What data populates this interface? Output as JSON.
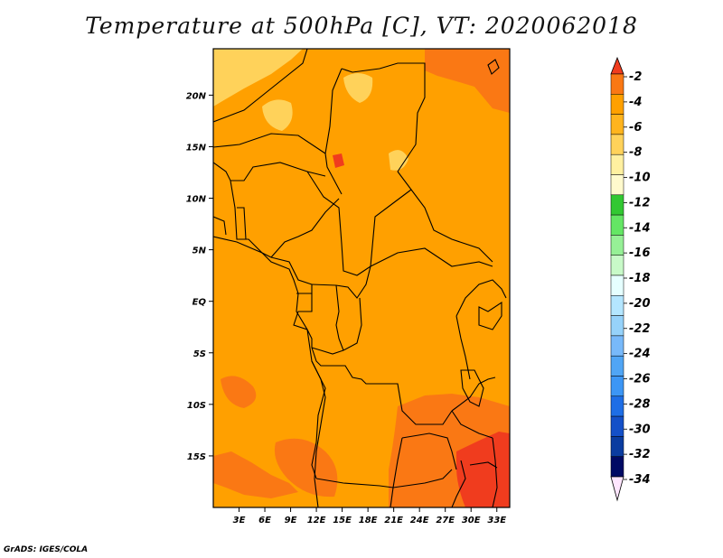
{
  "chart_data": {
    "type": "heatmap",
    "title": "Temperature at 500hPa [C], VT: 2020062018",
    "variable": "Temperature at 500hPa",
    "units": "C",
    "valid_time": "2020062018",
    "x_tick_labels": [
      "3E",
      "6E",
      "9E",
      "12E",
      "15E",
      "18E",
      "21E",
      "24E",
      "27E",
      "30E",
      "33E"
    ],
    "x_tick_values": [
      3,
      6,
      9,
      12,
      15,
      18,
      21,
      24,
      27,
      30,
      33
    ],
    "y_tick_labels": [
      "20N",
      "15N",
      "10N",
      "5N",
      "EQ",
      "5S",
      "10S",
      "15S"
    ],
    "y_tick_values": [
      20,
      15,
      10,
      5,
      0,
      -5,
      -10,
      -15
    ],
    "lon_range": [
      0,
      34.5
    ],
    "lat_range": [
      -20,
      24.5
    ],
    "colorbar": {
      "labels": [
        "-2",
        "-4",
        "-6",
        "-8",
        "-10",
        "-12",
        "-14",
        "-16",
        "-18",
        "-20",
        "-22",
        "-24",
        "-26",
        "-28",
        "-30",
        "-32",
        "-34"
      ],
      "levels": [
        -2,
        -4,
        -6,
        -8,
        -10,
        -12,
        -14,
        -16,
        -18,
        -20,
        -22,
        -24,
        -26,
        -28,
        -30,
        -32,
        -34
      ],
      "colors": [
        "#f03c1e",
        "#fa7814",
        "#ffa000",
        "#ffb41e",
        "#ffd25a",
        "#fff0a0",
        "#fffacd",
        "#32c832",
        "#64e664",
        "#96f096",
        "#c8fac8",
        "#e6ffff",
        "#b4e6ff",
        "#96d2fa",
        "#78b9fa",
        "#50a5f5",
        "#3c96f5",
        "#1e6ee6",
        "#1450c8",
        "#0a3ca0",
        "#000a64",
        "#ffe6ff"
      ]
    },
    "regions": [
      {
        "name": "background",
        "value": -5,
        "color": "#ffa000"
      },
      {
        "name": "sahara-north",
        "value": -9,
        "color": "#ffd25a"
      },
      {
        "name": "northeast-warm",
        "value": -3,
        "color": "#fa7814"
      },
      {
        "name": "southeast-warm",
        "value": -3,
        "color": "#fa7814"
      },
      {
        "name": "southeast-hot",
        "value": -1,
        "color": "#f03c1e"
      },
      {
        "name": "southwest-warm",
        "value": -3,
        "color": "#fa7814"
      }
    ]
  },
  "footer": "GrADS: IGES/COLA"
}
